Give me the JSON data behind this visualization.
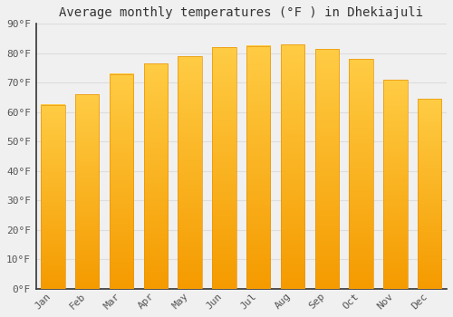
{
  "title": "Average monthly temperatures (°F ) in Dhekiajuli",
  "months": [
    "Jan",
    "Feb",
    "Mar",
    "Apr",
    "May",
    "Jun",
    "Jul",
    "Aug",
    "Sep",
    "Oct",
    "Nov",
    "Dec"
  ],
  "values": [
    62.5,
    66,
    73,
    76.5,
    79,
    82,
    82.5,
    83,
    81.5,
    78,
    71,
    64.5
  ],
  "bar_color_top": "#FFCC44",
  "bar_color_bottom": "#F59B00",
  "background_color": "#f0f0f0",
  "ylim": [
    0,
    90
  ],
  "yticks": [
    0,
    10,
    20,
    30,
    40,
    50,
    60,
    70,
    80,
    90
  ],
  "ytick_labels": [
    "0°F",
    "10°F",
    "20°F",
    "30°F",
    "40°F",
    "50°F",
    "60°F",
    "70°F",
    "80°F",
    "90°F"
  ],
  "title_fontsize": 10,
  "tick_fontsize": 8,
  "grid_color": "#dddddd",
  "bar_width": 0.7,
  "left_spine_color": "#333333",
  "bottom_spine_color": "#333333",
  "tick_color": "#555555"
}
